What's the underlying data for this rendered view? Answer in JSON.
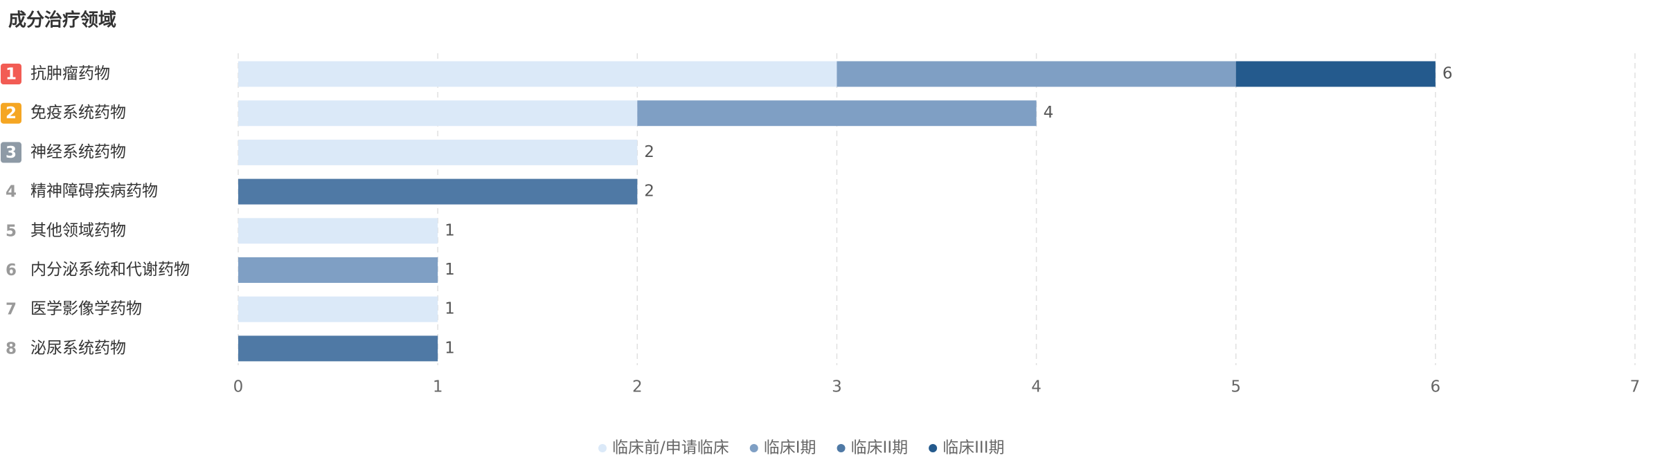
{
  "chart_data": {
    "type": "bar",
    "orientation": "horizontal",
    "stacked": true,
    "title": "成分治疗领域",
    "ranks": [
      "1",
      "2",
      "3",
      "4",
      "5",
      "6",
      "7",
      "8"
    ],
    "rank_colors": [
      "#f25c54",
      "#f5a623",
      "#8e9aa6"
    ],
    "categories": [
      "抗肿瘤药物",
      "免疫系统药物",
      "神经系统药物",
      "精神障碍疾病药物",
      "其他领域药物",
      "内分泌系统和代谢药物",
      "医学影像学药物",
      "泌尿系统药物"
    ],
    "series": [
      {
        "name": "临床前/申请临床",
        "color": "#dbe9f8",
        "values": [
          3,
          2,
          2,
          0,
          1,
          0,
          1,
          0
        ]
      },
      {
        "name": "临床I期",
        "color": "#7f9fc4",
        "values": [
          2,
          2,
          0,
          0,
          0,
          1,
          0,
          0
        ]
      },
      {
        "name": "临床II期",
        "color": "#4f79a5",
        "values": [
          0,
          0,
          0,
          2,
          0,
          0,
          0,
          1
        ]
      },
      {
        "name": "临床III期",
        "color": "#245a8d",
        "values": [
          1,
          0,
          0,
          0,
          0,
          0,
          0,
          0
        ]
      }
    ],
    "totals": [
      6,
      4,
      2,
      2,
      1,
      1,
      1,
      1
    ],
    "xlim": [
      0,
      7
    ],
    "xticks": [
      0,
      1,
      2,
      3,
      4,
      5,
      6,
      7
    ],
    "grid": true,
    "legend": "bottom"
  }
}
